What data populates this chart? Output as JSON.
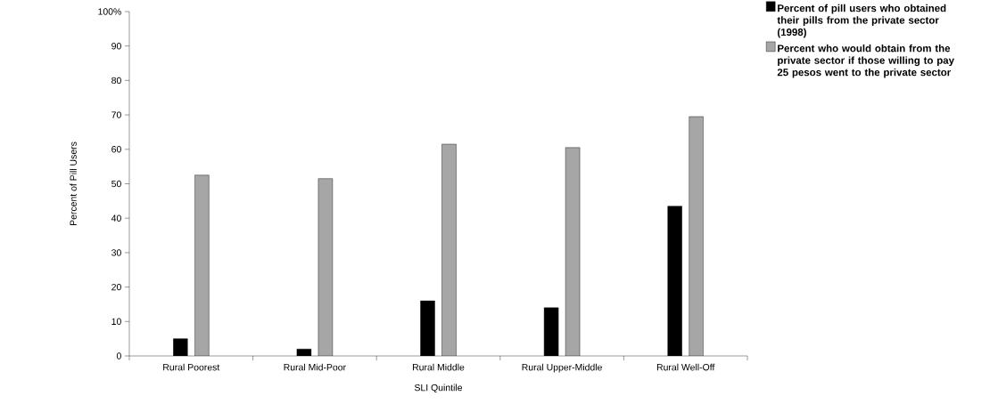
{
  "chart_data": {
    "type": "bar",
    "xlabel": "SLI Quintile",
    "ylabel": "Percent of Pill Users",
    "categories": [
      "Rural Poorest",
      "Rural Mid-Poor",
      "Rural Middle",
      "Rural Upper-Middle",
      "Rural Well-Off"
    ],
    "series": [
      {
        "name": "Percent of pill users who obtained their pills from the private sector (1998)",
        "color": "#000000",
        "values": [
          5,
          2,
          16,
          14,
          43.5
        ]
      },
      {
        "name": "Percent who would obtain from the private sector if those willing to pay 25 pesos went to the private sector",
        "color": "#a6a6a6",
        "values": [
          52.5,
          51.5,
          61.5,
          60.5,
          69.5
        ]
      }
    ],
    "ylim": [
      0,
      100
    ],
    "yticks": [
      0,
      10,
      20,
      30,
      40,
      50,
      60,
      70,
      80,
      90,
      {
        "value": 100,
        "label": "100%"
      }
    ],
    "grid": false,
    "legend": "right"
  }
}
